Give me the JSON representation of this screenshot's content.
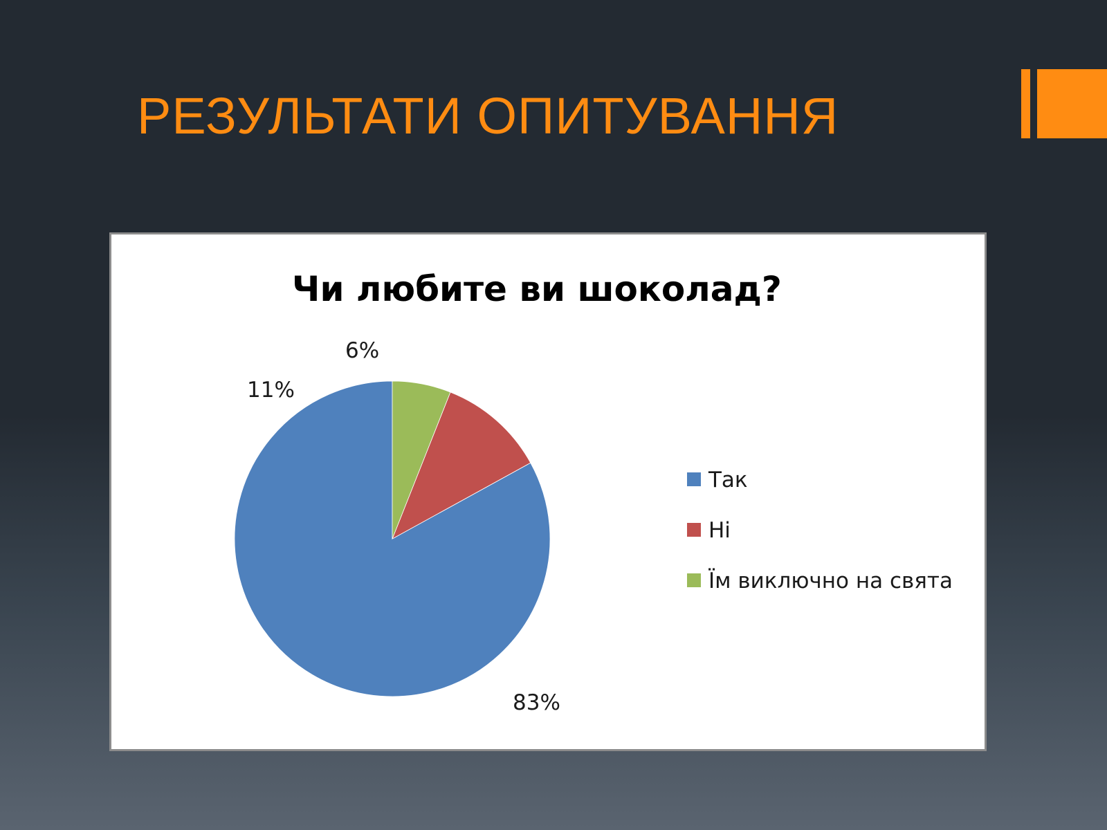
{
  "slide": {
    "title": "РЕЗУЛЬТАТИ ОПИТУВАННЯ",
    "accent_color": "#ff8c12"
  },
  "chart_data": {
    "type": "pie",
    "title": "Чи любите ви шоколад?",
    "categories": [
      "Так",
      "Ні",
      "Їм виключно на свята"
    ],
    "values": [
      83,
      11,
      6
    ],
    "value_labels": [
      "83%",
      "11%",
      "6%"
    ],
    "colors": [
      "#4f81bd",
      "#c0504d",
      "#9bbb59"
    ],
    "start_angle_deg": 0,
    "direction": "clockwise",
    "legend_position": "right"
  }
}
